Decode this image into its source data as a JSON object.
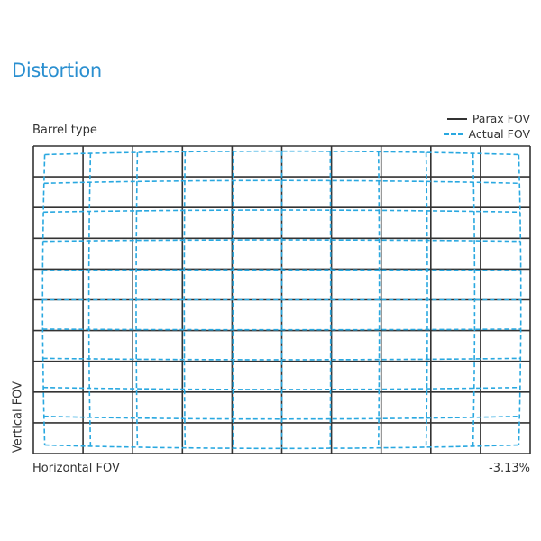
{
  "title": "Distortion",
  "diagram": {
    "subtitle": "Barrel type",
    "legend": [
      {
        "label": "Parax FOV",
        "style": "solid",
        "color": "#333333"
      },
      {
        "label": "Actual FOV",
        "style": "dashed",
        "color": "#29a8e0"
      }
    ],
    "y_label": "Vertical FOV",
    "x_label": "Horizontal FOV",
    "distortion_value": "-3.13%",
    "grid_columns": 10,
    "grid_rows": 10
  }
}
